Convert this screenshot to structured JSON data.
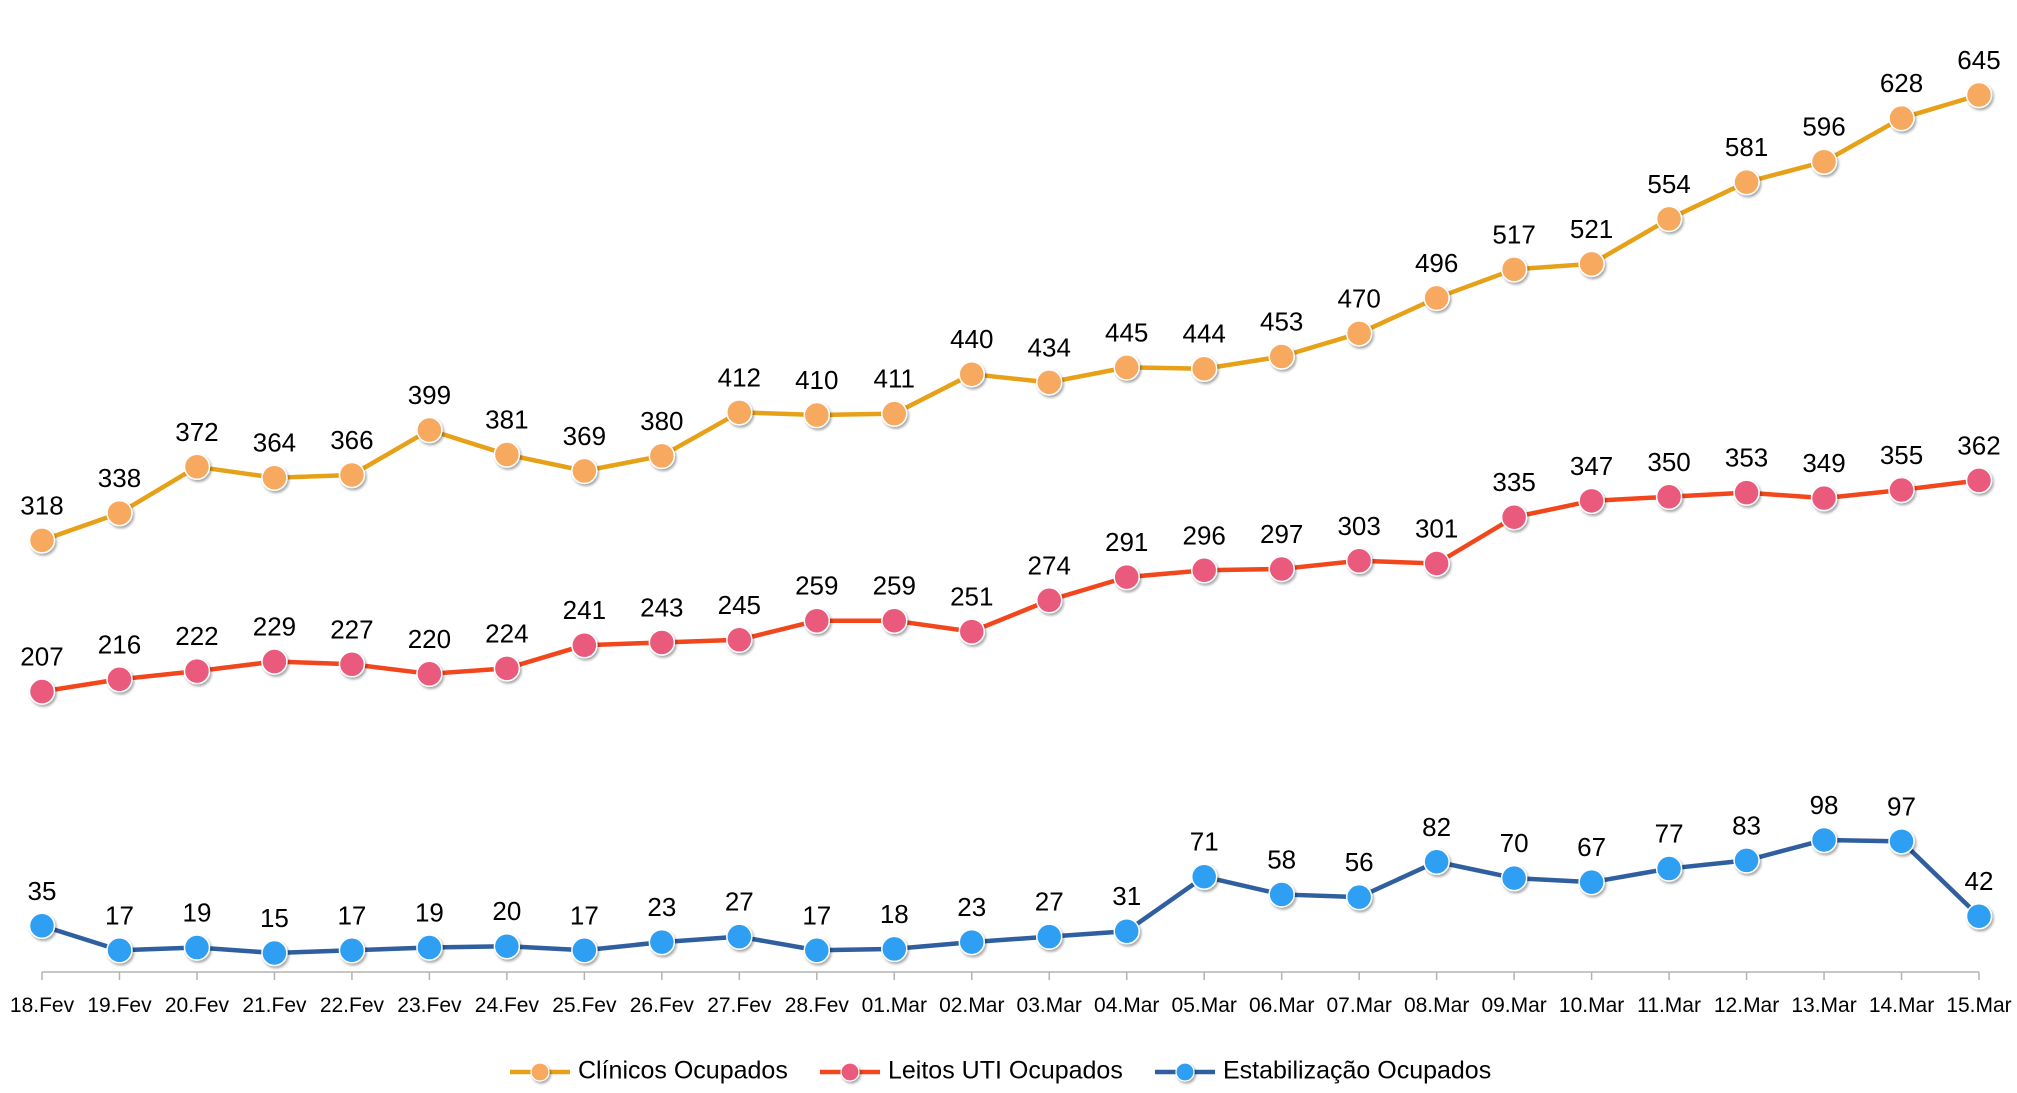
{
  "chart_data": {
    "type": "line",
    "categories": [
      "18.Fev",
      "19.Fev",
      "20.Fev",
      "21.Fev",
      "22.Fev",
      "23.Fev",
      "24.Fev",
      "25.Fev",
      "26.Fev",
      "27.Fev",
      "28.Fev",
      "01.Mar",
      "02.Mar",
      "03.Mar",
      "04.Mar",
      "05.Mar",
      "06.Mar",
      "07.Mar",
      "08.Mar",
      "09.Mar",
      "10.Mar",
      "11.Mar",
      "12.Mar",
      "13.Mar",
      "14.Mar",
      "15.Mar"
    ],
    "series": [
      {
        "name": "Clínicos Ocupados",
        "color": "#e6a118",
        "marker_color": "#f7a95e",
        "values": [
          318,
          338,
          372,
          364,
          366,
          399,
          381,
          369,
          380,
          412,
          410,
          411,
          440,
          434,
          445,
          444,
          453,
          470,
          496,
          517,
          521,
          554,
          581,
          596,
          628,
          645
        ]
      },
      {
        "name": "Leitos UTI Ocupados",
        "color": "#f2461c",
        "marker_color": "#ea5a7d",
        "values": [
          207,
          216,
          222,
          229,
          227,
          220,
          224,
          241,
          243,
          245,
          259,
          259,
          251,
          274,
          291,
          296,
          297,
          303,
          301,
          335,
          347,
          350,
          353,
          349,
          355,
          362
        ]
      },
      {
        "name": "Estabilização Ocupados",
        "color": "#2f5f9f",
        "marker_color": "#2e9ff2",
        "values": [
          35,
          17,
          19,
          15,
          17,
          19,
          20,
          17,
          23,
          27,
          17,
          18,
          23,
          27,
          31,
          71,
          58,
          56,
          82,
          70,
          67,
          77,
          83,
          98,
          97,
          42
        ]
      }
    ],
    "legend": "bottom"
  }
}
